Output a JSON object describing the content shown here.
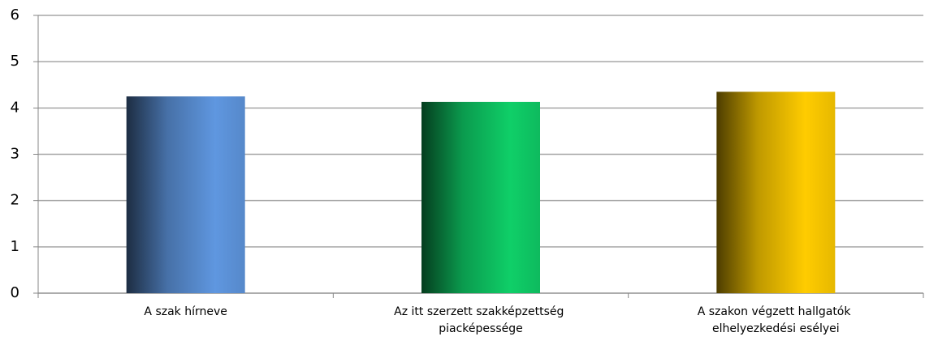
{
  "chart_data": {
    "type": "bar",
    "categories": [
      "A szak hírneve",
      "Az itt szerzett szakképzettség piacképessége",
      "A szakon végzett hallgatók elhelyezkedési esélyei"
    ],
    "values": [
      4.25,
      4.13,
      4.35
    ],
    "colors": [
      "#5f97e0",
      "#0fcf68",
      "#ffcc00"
    ],
    "ylim": [
      0,
      6
    ],
    "yticks": [
      0,
      1,
      2,
      3,
      4,
      5,
      6
    ],
    "grid": true
  }
}
